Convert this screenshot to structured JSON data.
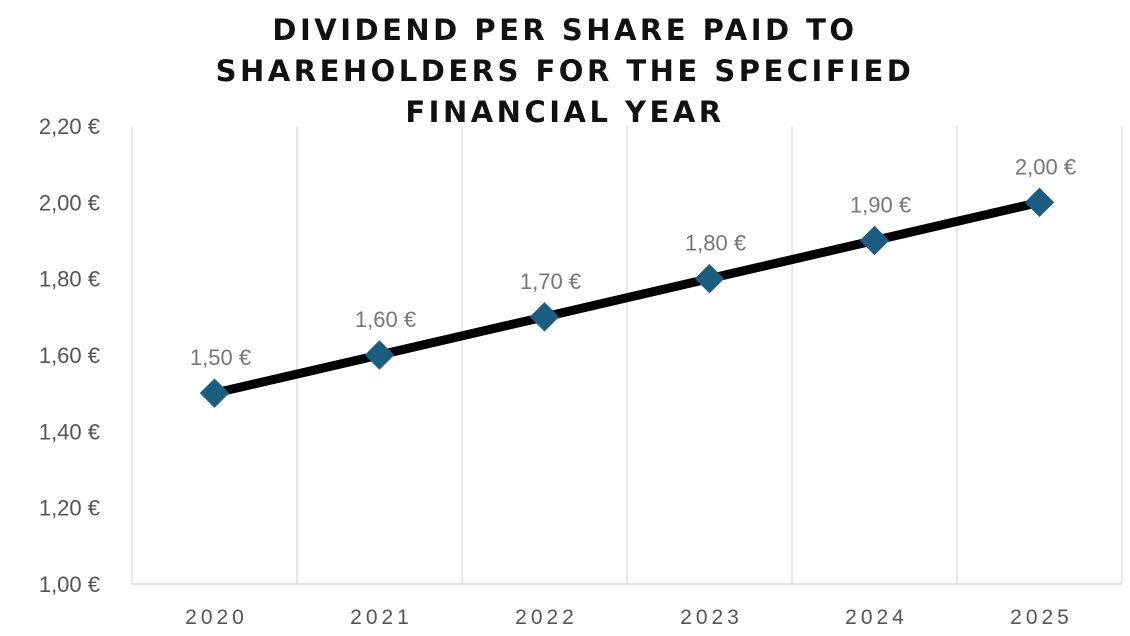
{
  "chart_data": {
    "type": "line",
    "title_lines": [
      "DIVIDEND PER SHARE PAID TO",
      "SHAREHOLDERS FOR THE SPECIFIED",
      "FINANCIAL YEAR"
    ],
    "categories": [
      "2020",
      "2021",
      "2022",
      "2023",
      "2024",
      "2025"
    ],
    "series": [
      {
        "values": [
          1.5,
          1.6,
          1.7,
          1.8,
          1.9,
          2.0
        ],
        "data_labels": [
          "1,50 €",
          "1,60 €",
          "1,70 €",
          "1,80 €",
          "1,90 €",
          "2,00 €"
        ],
        "line_color": "#000000",
        "marker": "diamond",
        "marker_color": "#1b5e82"
      }
    ],
    "ylim": [
      1.0,
      2.2
    ],
    "yticks": [
      1.0,
      1.2,
      1.4,
      1.6,
      1.8,
      2.0,
      2.2
    ],
    "ytick_labels": [
      "1,00 €",
      "1,20 €",
      "1,40 €",
      "1,60 €",
      "1,80 €",
      "2,00 €",
      "2,20 €"
    ],
    "gridlines": "vertical",
    "grid_color": "#d9d9d9",
    "legend": "none"
  }
}
